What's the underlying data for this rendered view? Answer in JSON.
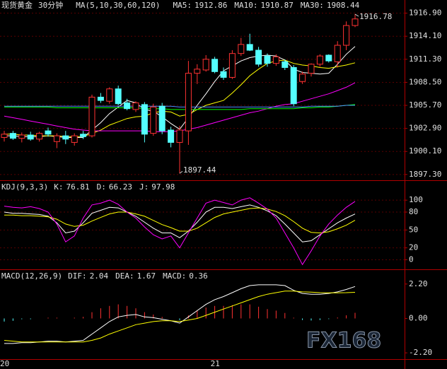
{
  "watermark": "FX168",
  "chart_data": [
    {
      "type": "candlestick",
      "title": "现货黄金",
      "subtitle": "30分钟",
      "label": "MA(5,10,30,60,120)",
      "open": [
        1901.8,
        1902.3,
        1901.7,
        1902.1,
        1901.6,
        1902.6,
        1901.3,
        1902.0,
        1901.2,
        1902.2,
        1902.0,
        1906.7,
        1906.2,
        1907.7,
        1906.0,
        1905.2,
        1905.8,
        1902.3,
        1905.6,
        1902.7,
        1901.2,
        1902.6,
        1909.6,
        1910.0,
        1911.3,
        1909.8,
        1909.1,
        1912.0,
        1913.1,
        1912.4,
        1911.7,
        1910.8,
        1911.0,
        1910.3,
        1908.6,
        1909.6,
        1910.7,
        1911.8,
        1911.0,
        1913.0,
        1915.4
      ],
      "high": [
        1902.6,
        1902.6,
        1902.4,
        1902.5,
        1902.5,
        1903.0,
        1902.3,
        1902.6,
        1902.3,
        1902.6,
        1907.0,
        1907.2,
        1907.9,
        1908.1,
        1906.5,
        1906.2,
        1906.1,
        1905.9,
        1906.0,
        1903.1,
        1903.2,
        1911.1,
        1910.7,
        1911.8,
        1911.6,
        1910.3,
        1912.4,
        1913.9,
        1914.4,
        1912.8,
        1912.0,
        1911.9,
        1911.3,
        1910.6,
        1909.8,
        1910.8,
        1911.9,
        1911.9,
        1913.5,
        1915.9,
        1916.78
      ],
      "low": [
        1901.3,
        1901.5,
        1901.2,
        1901.4,
        1901.3,
        1901.9,
        1900.5,
        1901.0,
        1900.8,
        1901.6,
        1901.8,
        1906.0,
        1905.9,
        1905.7,
        1905.1,
        1904.9,
        1901.2,
        1902.0,
        1902.2,
        1900.6,
        1897.44,
        1900.9,
        1908.3,
        1909.8,
        1909.6,
        1908.8,
        1908.9,
        1911.7,
        1912.3,
        1910.4,
        1910.4,
        1910.5,
        1910.0,
        1905.6,
        1908.3,
        1909.2,
        1910.4,
        1910.9,
        1910.3,
        1912.4,
        1915.2
      ],
      "close": [
        1902.2,
        1901.7,
        1902.1,
        1901.6,
        1902.3,
        1902.2,
        1902.0,
        1901.6,
        1902.0,
        1901.9,
        1906.7,
        1906.3,
        1907.7,
        1905.9,
        1905.3,
        1906.0,
        1902.2,
        1905.5,
        1902.6,
        1901.2,
        1902.7,
        1909.6,
        1910.1,
        1911.3,
        1909.8,
        1909.1,
        1912.0,
        1913.1,
        1912.4,
        1910.7,
        1910.8,
        1911.6,
        1910.3,
        1905.9,
        1909.5,
        1910.7,
        1911.7,
        1911.1,
        1913.0,
        1915.4,
        1916.2
      ],
      "up_color": "#ff3232",
      "down_color": "#54ffff",
      "series": [
        {
          "name": "MA5:",
          "color": "#ffffff",
          "values": [
            1902.0,
            1902.0,
            1901.9,
            1901.9,
            1901.9,
            1902.0,
            1901.9,
            1901.8,
            1901.8,
            1901.8,
            1902.7,
            1903.6,
            1904.7,
            1905.5,
            1906.3,
            1906.0,
            1905.2,
            1905.0,
            1904.3,
            1903.5,
            1902.8,
            1904.2,
            1905.7,
            1907.1,
            1908.6,
            1909.9,
            1910.5,
            1911.1,
            1911.5,
            1911.7,
            1911.8,
            1911.7,
            1911.2,
            1910.1,
            1909.7,
            1909.6,
            1909.5,
            1909.6,
            1910.7,
            1911.9,
            1912.86
          ]
        },
        {
          "name": "MA10:",
          "color": "#ffff00",
          "values": [
            1902.2,
            1902.2,
            1902.1,
            1902.1,
            1902.0,
            1902.0,
            1902.0,
            1901.9,
            1901.9,
            1901.9,
            1902.3,
            1902.7,
            1903.3,
            1903.7,
            1904.1,
            1904.3,
            1904.4,
            1904.8,
            1905.0,
            1904.9,
            1904.4,
            1904.6,
            1905.2,
            1905.7,
            1906.0,
            1906.3,
            1907.2,
            1908.2,
            1909.3,
            1910.1,
            1910.8,
            1911.1,
            1911.2,
            1910.8,
            1910.6,
            1910.5,
            1910.3,
            1910.2,
            1910.4,
            1910.6,
            1910.87
          ]
        },
        {
          "name": "MA30:",
          "color": "#ff00ff",
          "values": [
            1904.4,
            1904.2,
            1904.0,
            1903.8,
            1903.6,
            1903.4,
            1903.2,
            1903.0,
            1902.8,
            1902.7,
            1902.6,
            1902.6,
            1902.6,
            1902.6,
            1902.6,
            1902.6,
            1902.6,
            1902.5,
            1902.5,
            1902.5,
            1902.6,
            1902.8,
            1903.0,
            1903.3,
            1903.6,
            1903.9,
            1904.2,
            1904.5,
            1904.8,
            1905.0,
            1905.3,
            1905.6,
            1905.8,
            1905.9,
            1906.2,
            1906.5,
            1906.8,
            1907.1,
            1907.5,
            1907.9,
            1908.44
          ]
        },
        {
          "color": "#00ff00",
          "values": [
            1905.5,
            1905.5,
            1905.5,
            1905.5,
            1905.5,
            1905.5,
            1905.4,
            1905.4,
            1905.4,
            1905.4,
            1905.4,
            1905.4,
            1905.4,
            1905.4,
            1905.4,
            1905.4,
            1905.3,
            1905.3,
            1905.3,
            1905.2,
            1905.2,
            1905.2,
            1905.2,
            1905.2,
            1905.2,
            1905.2,
            1905.2,
            1905.2,
            1905.3,
            1905.3,
            1905.3,
            1905.3,
            1905.3,
            1905.3,
            1905.4,
            1905.4,
            1905.5,
            1905.5,
            1905.6,
            1905.7,
            1905.8
          ]
        },
        {
          "color": "#4f8fff",
          "values": [
            1905.6,
            1905.6,
            1905.6,
            1905.6,
            1905.6,
            1905.6,
            1905.6,
            1905.6,
            1905.6,
            1905.6,
            1905.6,
            1905.6,
            1905.6,
            1905.6,
            1905.6,
            1905.6,
            1905.6,
            1905.6,
            1905.6,
            1905.6,
            1905.5,
            1905.5,
            1905.5,
            1905.5,
            1905.5,
            1905.5,
            1905.5,
            1905.5,
            1905.5,
            1905.5,
            1905.5,
            1905.5,
            1905.5,
            1905.5,
            1905.5,
            1905.6,
            1905.6,
            1905.6,
            1905.6,
            1905.7,
            1905.7
          ]
        }
      ],
      "ylim": [
        1896.6,
        1918.5
      ],
      "yticks": [
        {
          "value": 1916.9,
          "label": "1916.90"
        },
        {
          "value": 1914.1,
          "label": "1914.10"
        },
        {
          "value": 1911.3,
          "label": "1911.30"
        },
        {
          "value": 1908.5,
          "label": "1908.50"
        },
        {
          "value": 1905.7,
          "label": "1905.70"
        },
        {
          "value": 1902.9,
          "label": "1902.90"
        },
        {
          "value": 1900.1,
          "label": "1900.10"
        },
        {
          "value": 1897.3,
          "label": "1897.30"
        }
      ],
      "grid": true
    },
    {
      "type": "line",
      "title": "KDJ(9,3,3)",
      "series": [
        {
          "name": "K:",
          "color": "#ffffff",
          "values": [
            80,
            78,
            78,
            77,
            76,
            73,
            62,
            45,
            48,
            62,
            78,
            83,
            88,
            87,
            80,
            73,
            63,
            53,
            45,
            45,
            37,
            48,
            63,
            80,
            88,
            88,
            86,
            89,
            92,
            88,
            82,
            74,
            60,
            45,
            30,
            32,
            42,
            52,
            62,
            70,
            76.81
          ]
        },
        {
          "name": "D:",
          "color": "#ffff00",
          "values": [
            75,
            75,
            74,
            74,
            73,
            72,
            68,
            60,
            56,
            58,
            65,
            71,
            77,
            80,
            80,
            77,
            73,
            66,
            59,
            54,
            48,
            48,
            53,
            62,
            71,
            77,
            80,
            83,
            86,
            87,
            85,
            81,
            74,
            64,
            53,
            46,
            45,
            47,
            52,
            58,
            66.23
          ]
        },
        {
          "name": "J:",
          "color": "#ff00ff",
          "values": [
            90,
            88,
            87,
            89,
            86,
            80,
            60,
            30,
            40,
            70,
            92,
            95,
            100,
            93,
            80,
            70,
            55,
            42,
            35,
            40,
            20,
            45,
            70,
            95,
            100,
            96,
            92,
            100,
            104,
            95,
            85,
            70,
            45,
            20,
            -8,
            15,
            40,
            60,
            75,
            88,
            97.98
          ]
        }
      ],
      "ylim": [
        -16,
        131
      ],
      "yticks": [
        100,
        80,
        50,
        20,
        0
      ],
      "grid": true
    },
    {
      "type": "combo",
      "title": "MACD(12,26,9)",
      "categories": [
        "20",
        null,
        null,
        null,
        null,
        null,
        null,
        null,
        null,
        null,
        null,
        null,
        null,
        null,
        null,
        null,
        null,
        null,
        null,
        null,
        null,
        null,
        null,
        null,
        "21",
        null,
        null,
        null,
        null,
        null,
        null,
        null,
        null,
        null,
        null,
        null,
        null,
        null,
        null,
        null,
        null
      ],
      "series": [
        {
          "name": "DIF:",
          "color": "#ffffff",
          "kind": "line",
          "values": [
            -1.6,
            -1.6,
            -1.55,
            -1.55,
            -1.5,
            -1.45,
            -1.45,
            -1.5,
            -1.45,
            -1.4,
            -1.0,
            -0.6,
            -0.2,
            0.1,
            0.2,
            0.25,
            0.1,
            0.05,
            -0.05,
            -0.15,
            -0.3,
            0.1,
            0.5,
            0.9,
            1.2,
            1.4,
            1.65,
            1.9,
            2.1,
            2.15,
            2.15,
            2.15,
            2.1,
            1.8,
            1.6,
            1.55,
            1.55,
            1.6,
            1.7,
            1.85,
            2.04
          ]
        },
        {
          "name": "DEA:",
          "color": "#ffff00",
          "kind": "line",
          "values": [
            -1.4,
            -1.45,
            -1.5,
            -1.5,
            -1.5,
            -1.5,
            -1.5,
            -1.5,
            -1.5,
            -1.5,
            -1.4,
            -1.25,
            -1.0,
            -0.8,
            -0.6,
            -0.4,
            -0.3,
            -0.2,
            -0.15,
            -0.15,
            -0.2,
            -0.1,
            0.0,
            0.2,
            0.4,
            0.6,
            0.8,
            1.0,
            1.2,
            1.4,
            1.55,
            1.65,
            1.75,
            1.75,
            1.7,
            1.68,
            1.65,
            1.64,
            1.64,
            1.65,
            1.67
          ]
        },
        {
          "name": "MACD:",
          "color": "#ff3232",
          "negative_color": "#54ffff",
          "kind": "bar",
          "values": [
            -0.2,
            -0.15,
            -0.05,
            -0.05,
            0,
            0.05,
            0.05,
            0,
            0.05,
            0.1,
            0.4,
            0.65,
            0.8,
            0.9,
            0.8,
            0.65,
            0.4,
            0.25,
            0.1,
            0,
            -0.1,
            0.2,
            0.5,
            0.7,
            0.8,
            0.8,
            0.85,
            0.9,
            0.9,
            0.75,
            0.6,
            0.5,
            0.35,
            0.05,
            -0.1,
            -0.13,
            -0.1,
            -0.04,
            0.06,
            0.2,
            0.36
          ]
        }
      ],
      "ylim": [
        -2.6,
        3.05
      ],
      "yticks": [
        {
          "value": 2.2,
          "label": "2.20"
        },
        {
          "value": 0,
          "label": "0.00"
        },
        {
          "value": -2.2,
          "label": "-2.20"
        }
      ],
      "grid": false
    }
  ]
}
